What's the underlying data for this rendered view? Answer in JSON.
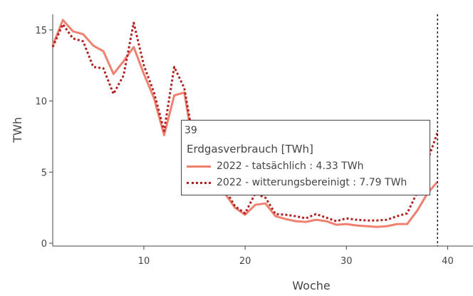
{
  "chart_data": {
    "type": "line",
    "xlabel": "Woche",
    "ylabel": "TWh",
    "xlim": [
      1,
      42.5
    ],
    "ylim": [
      -0.2,
      16.1
    ],
    "xticks": [
      10,
      20,
      30,
      40
    ],
    "yticks": [
      0,
      5,
      10,
      15
    ],
    "hover_x": 39,
    "series": [
      {
        "name": "2022 - tatsächlich",
        "color": "#f08070",
        "dash": "solid",
        "x": [
          1,
          2,
          3,
          4,
          5,
          6,
          7,
          8,
          9,
          10,
          11,
          12,
          13,
          14,
          15,
          16,
          17,
          18,
          19,
          20,
          21,
          22,
          23,
          24,
          25,
          26,
          27,
          28,
          29,
          30,
          31,
          32,
          33,
          34,
          35,
          36,
          37,
          38,
          39
        ],
        "y": [
          13.9,
          15.7,
          14.9,
          14.7,
          13.9,
          13.5,
          11.9,
          12.8,
          13.8,
          11.9,
          10.2,
          7.6,
          10.4,
          10.6,
          6.3,
          4.4,
          3.8,
          3.5,
          2.5,
          2.0,
          2.7,
          2.8,
          1.9,
          1.7,
          1.55,
          1.5,
          1.65,
          1.55,
          1.3,
          1.35,
          1.25,
          1.2,
          1.15,
          1.2,
          1.35,
          1.35,
          2.3,
          3.5,
          4.33
        ]
      },
      {
        "name": "2022 - witterungsbereinigt",
        "color": "#b22222",
        "dash": "dot",
        "x": [
          1,
          2,
          3,
          4,
          5,
          6,
          7,
          8,
          9,
          10,
          11,
          12,
          13,
          14,
          15,
          16,
          17,
          18,
          19,
          20,
          21,
          22,
          23,
          24,
          25,
          26,
          27,
          28,
          29,
          30,
          31,
          32,
          33,
          34,
          35,
          36,
          37,
          38,
          39
        ],
        "y": [
          13.8,
          15.4,
          14.4,
          14.2,
          12.4,
          12.3,
          10.5,
          11.8,
          15.5,
          12.5,
          10.6,
          7.9,
          12.4,
          10.9,
          6.8,
          4.8,
          4.0,
          3.8,
          2.6,
          2.1,
          3.5,
          3.2,
          2.05,
          2.0,
          1.9,
          1.75,
          2.05,
          1.8,
          1.55,
          1.75,
          1.65,
          1.6,
          1.6,
          1.65,
          1.9,
          2.1,
          3.6,
          5.8,
          7.79
        ]
      }
    ]
  },
  "tooltip": {
    "week": "39",
    "header": "Erdgasverbrauch [TWh]",
    "rows": [
      "2022 - tatsächlich : 4.33 TWh",
      "2022 - witterungsbereinigt : 7.79 TWh"
    ]
  }
}
